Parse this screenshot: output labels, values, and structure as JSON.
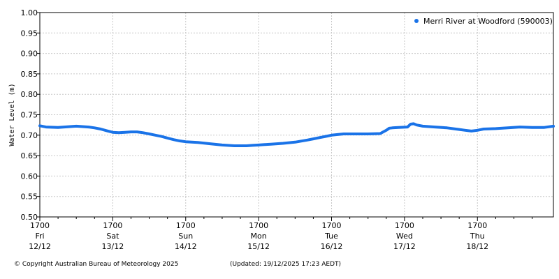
{
  "chart_data": {
    "type": "line",
    "ylabel": "Water Level (m)",
    "ylim": [
      0.5,
      1.0
    ],
    "yticks": [
      "0.50",
      "0.55",
      "0.60",
      "0.65",
      "0.70",
      "0.75",
      "0.80",
      "0.85",
      "0.90",
      "0.95",
      "1.00"
    ],
    "xlim_hours": [
      0,
      169
    ],
    "xticks": [
      {
        "hours": 0,
        "time": "1700",
        "day": "Fri",
        "date": "12/12"
      },
      {
        "hours": 24,
        "time": "1700",
        "day": "Sat",
        "date": "13/12"
      },
      {
        "hours": 48,
        "time": "1700",
        "day": "Sun",
        "date": "14/12"
      },
      {
        "hours": 72,
        "time": "1700",
        "day": "Mon",
        "date": "15/12"
      },
      {
        "hours": 96,
        "time": "1700",
        "day": "Tue",
        "date": "16/12"
      },
      {
        "hours": 120,
        "time": "1700",
        "day": "Wed",
        "date": "17/12"
      },
      {
        "hours": 144,
        "time": "1700",
        "day": "Thu",
        "date": "18/12"
      }
    ],
    "grid": true,
    "legend_position": "top-right",
    "series": [
      {
        "name": "Merri River at Woodford (590003)",
        "color": "#1a73e8",
        "x": [
          0,
          2,
          6,
          10,
          12,
          14,
          16,
          18,
          20,
          22,
          24,
          26,
          28,
          30,
          32,
          34,
          36,
          38,
          40,
          42,
          43,
          44,
          46,
          48,
          52,
          56,
          60,
          64,
          68,
          70,
          72,
          74,
          76,
          78,
          80,
          84,
          88,
          90,
          92,
          94,
          96,
          100,
          104,
          108,
          112,
          114,
          115,
          116,
          118,
          121,
          122,
          123,
          124,
          126,
          130,
          134,
          138,
          140,
          142,
          144,
          146,
          150,
          154,
          158,
          162,
          166,
          169
        ],
        "y": [
          0.723,
          0.72,
          0.719,
          0.721,
          0.722,
          0.721,
          0.72,
          0.718,
          0.715,
          0.711,
          0.707,
          0.706,
          0.707,
          0.708,
          0.708,
          0.706,
          0.703,
          0.7,
          0.697,
          0.693,
          0.691,
          0.689,
          0.686,
          0.684,
          0.682,
          0.679,
          0.676,
          0.674,
          0.674,
          0.675,
          0.676,
          0.677,
          0.678,
          0.679,
          0.68,
          0.683,
          0.688,
          0.691,
          0.694,
          0.697,
          0.7,
          0.703,
          0.703,
          0.703,
          0.704,
          0.712,
          0.717,
          0.718,
          0.719,
          0.72,
          0.727,
          0.728,
          0.725,
          0.722,
          0.72,
          0.718,
          0.714,
          0.712,
          0.71,
          0.712,
          0.715,
          0.716,
          0.718,
          0.72,
          0.719,
          0.719,
          0.722
        ]
      }
    ]
  },
  "footer": {
    "copyright": "© Copyright Australian Bureau of Meteorology 2025",
    "updated": "(Updated: 19/12/2025 17:23 AEDT)"
  }
}
